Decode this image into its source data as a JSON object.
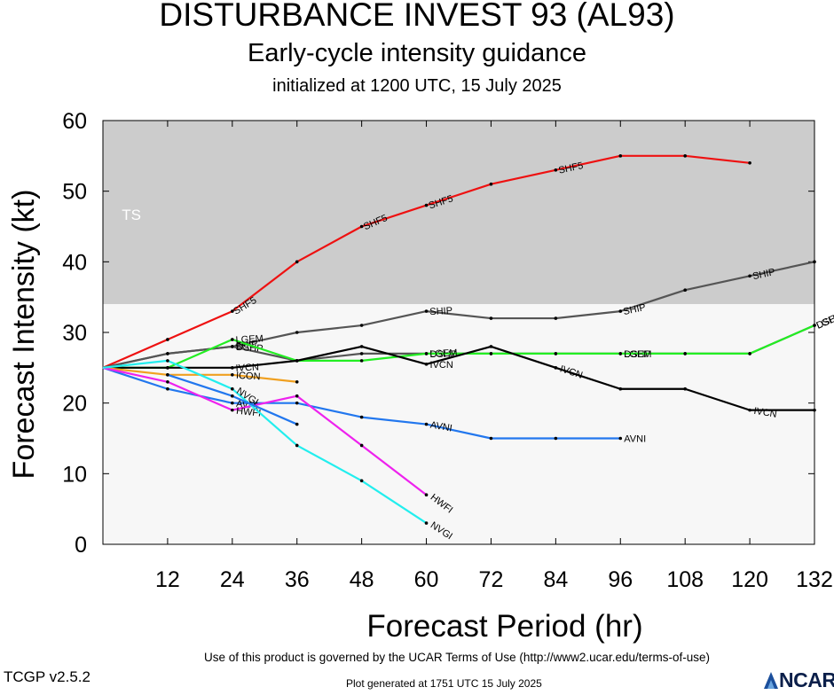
{
  "header": {
    "title": "DISTURBANCE INVEST 93 (AL93)",
    "subtitle": "Early-cycle intensity guidance",
    "initialized": "initialized at 1200 UTC, 15 July 2025"
  },
  "footer": {
    "terms": "Use of this product is governed by the UCAR Terms of Use (http://www2.ucar.edu/terms-of-use)",
    "version": "TCGP v2.5.2",
    "generated": "Plot generated at 1751 UTC   15 July 2025",
    "logo_text": "NCAR",
    "logo_icon": "ncar-logo-icon"
  },
  "chart_data": {
    "type": "line",
    "xlabel": "Forecast Period (hr)",
    "ylabel": "Forecast Intensity (kt)",
    "xlim": [
      0,
      132
    ],
    "ylim": [
      0,
      60
    ],
    "xticks": [
      12,
      24,
      36,
      48,
      60,
      72,
      84,
      96,
      108,
      120,
      132
    ],
    "yticks": [
      0,
      10,
      20,
      30,
      40,
      50,
      60
    ],
    "bands": [
      {
        "label": "TS",
        "from": 34,
        "to": 60,
        "color": "#cccccc"
      },
      {
        "label": "",
        "from": 0,
        "to": 34,
        "color": "#f7f7f7"
      }
    ],
    "series": [
      {
        "name": "SHF5",
        "color": "#ee1111",
        "points": [
          [
            0,
            25
          ],
          [
            12,
            29
          ],
          [
            24,
            33
          ],
          [
            36,
            40
          ],
          [
            48,
            45
          ],
          [
            60,
            48
          ],
          [
            72,
            51
          ],
          [
            84,
            53
          ],
          [
            96,
            55
          ],
          [
            108,
            55
          ],
          [
            120,
            54
          ]
        ],
        "label_at": [
          24,
          48,
          60,
          84
        ]
      },
      {
        "name": "SHIP",
        "color": "#555555",
        "points": [
          [
            0,
            25
          ],
          [
            12,
            27
          ],
          [
            24,
            28
          ],
          [
            36,
            30
          ],
          [
            48,
            31
          ],
          [
            60,
            33
          ],
          [
            72,
            32
          ],
          [
            84,
            32
          ],
          [
            96,
            33
          ],
          [
            108,
            36
          ],
          [
            120,
            38
          ],
          [
            132,
            40
          ]
        ],
        "label_at": [
          24,
          60,
          96,
          120
        ]
      },
      {
        "name": "DSHP",
        "color": "#555555",
        "points": [
          [
            0,
            25
          ],
          [
            12,
            27
          ],
          [
            24,
            28
          ],
          [
            36,
            26
          ],
          [
            48,
            27
          ],
          [
            60,
            27
          ],
          [
            72,
            27
          ],
          [
            84,
            27
          ],
          [
            96,
            27
          ],
          [
            108,
            27
          ],
          [
            120,
            27
          ],
          [
            132,
            31
          ]
        ],
        "label_at": [
          24,
          60,
          96,
          132
        ]
      },
      {
        "name": "LGEM",
        "color": "#22ee22",
        "points": [
          [
            0,
            25
          ],
          [
            12,
            25
          ],
          [
            24,
            29
          ],
          [
            36,
            26
          ],
          [
            48,
            26
          ],
          [
            60,
            27
          ],
          [
            72,
            27
          ],
          [
            84,
            27
          ],
          [
            96,
            27
          ],
          [
            108,
            27
          ],
          [
            120,
            27
          ],
          [
            132,
            31
          ]
        ],
        "label_at": [
          24,
          60,
          96,
          132
        ]
      },
      {
        "name": "IVCN",
        "color": "#000000",
        "points": [
          [
            0,
            25
          ],
          [
            12,
            25
          ],
          [
            24,
            25
          ],
          [
            36,
            26
          ],
          [
            48,
            28
          ],
          [
            60,
            25.5
          ],
          [
            72,
            28
          ],
          [
            84,
            25
          ],
          [
            96,
            22
          ],
          [
            108,
            22
          ],
          [
            120,
            19
          ],
          [
            132,
            19
          ]
        ],
        "label_at": [
          24,
          60,
          84,
          120
        ]
      },
      {
        "name": "ICON",
        "color": "#f0a020",
        "points": [
          [
            0,
            25
          ],
          [
            12,
            24
          ],
          [
            24,
            24
          ],
          [
            36,
            23
          ]
        ],
        "label_at": [
          24
        ]
      },
      {
        "name": "AVNI",
        "color": "#2277ee",
        "points": [
          [
            0,
            25
          ],
          [
            12,
            22
          ],
          [
            24,
            20
          ],
          [
            36,
            20
          ],
          [
            48,
            18
          ],
          [
            60,
            17
          ],
          [
            72,
            15
          ],
          [
            84,
            15
          ],
          [
            96,
            15
          ]
        ],
        "label_at": [
          24,
          60,
          96
        ]
      },
      {
        "name": "HWFI",
        "color": "#ee22ee",
        "points": [
          [
            0,
            25
          ],
          [
            12,
            23
          ],
          [
            24,
            19
          ],
          [
            36,
            21
          ],
          [
            48,
            14
          ],
          [
            60,
            7
          ]
        ],
        "label_at": [
          24,
          60
        ]
      },
      {
        "name": "NVGI",
        "color": "#22eeee",
        "points": [
          [
            0,
            25
          ],
          [
            12,
            26
          ],
          [
            24,
            22
          ],
          [
            36,
            14
          ],
          [
            48,
            9
          ],
          [
            60,
            3
          ]
        ],
        "label_at": [
          24,
          60
        ]
      },
      {
        "name": "",
        "color": "#2277ee",
        "points": [
          [
            12,
            24
          ],
          [
            24,
            21
          ],
          [
            36,
            17
          ]
        ],
        "label_at": []
      }
    ]
  }
}
